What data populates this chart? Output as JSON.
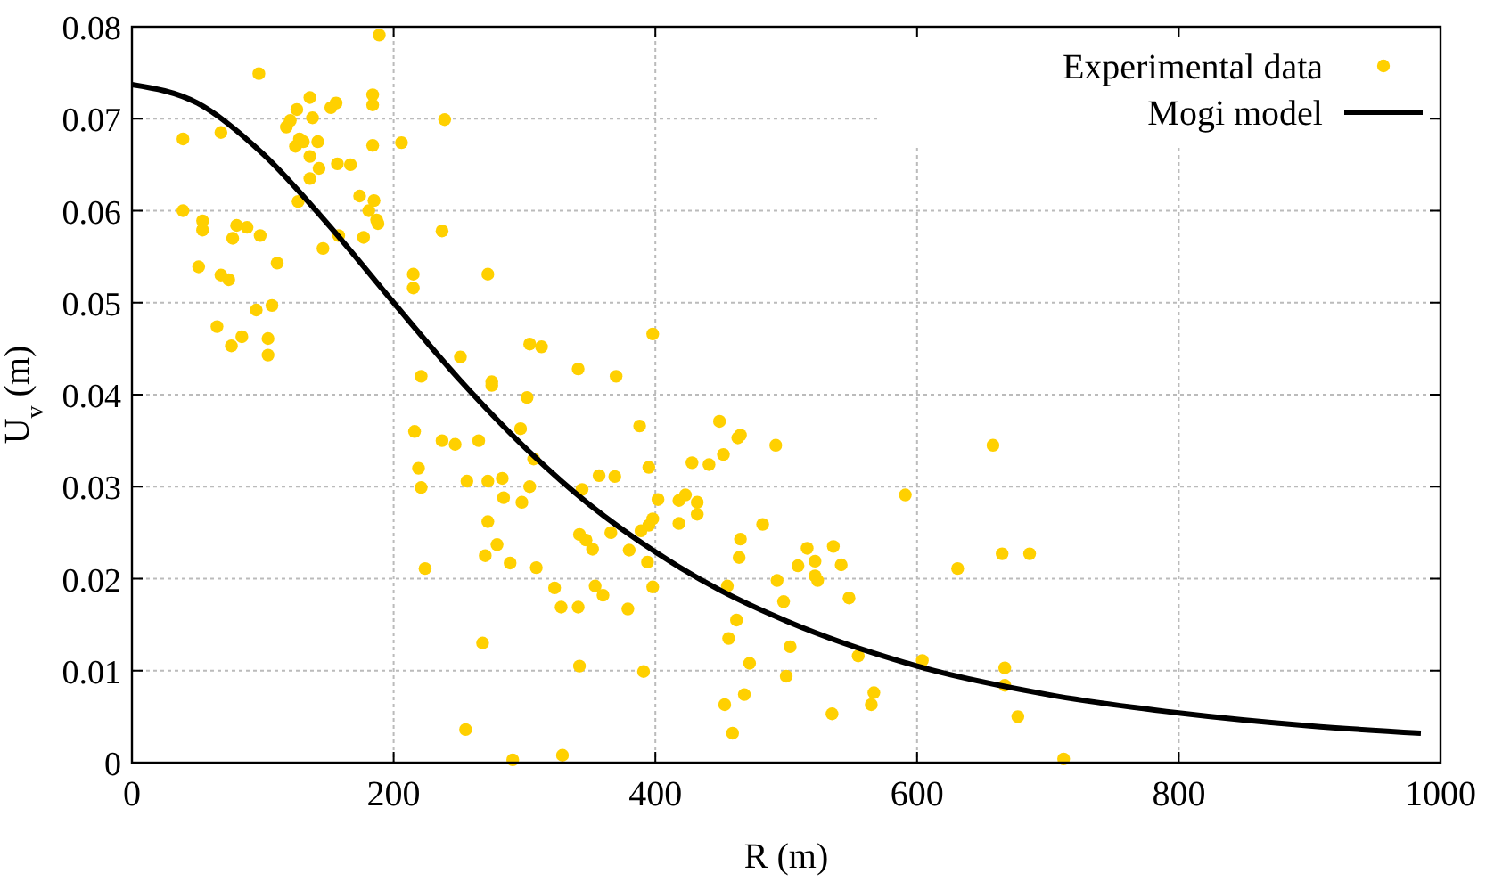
{
  "chart_data": {
    "type": "scatter",
    "xlabel": "R (m)",
    "ylabel": "U$_{v}$ (m)",
    "xlim": [
      0,
      1000
    ],
    "ylim": [
      0,
      0.08
    ],
    "xticks": [
      0,
      200,
      400,
      600,
      800,
      1000
    ],
    "yticks": [
      0,
      0.01,
      0.02,
      0.03,
      0.04,
      0.05,
      0.06,
      0.07,
      0.08
    ],
    "grid": true,
    "legend": "top right",
    "series": [
      {
        "name": "Experimental data",
        "marker": "circle",
        "color": "#ffd000",
        "x": [
          39,
          39,
          54,
          54,
          51,
          68,
          65,
          68,
          74,
          76,
          84,
          80,
          88,
          77,
          98,
          97,
          95,
          104,
          104,
          107,
          111,
          118,
          121,
          125,
          128,
          131,
          126,
          136,
          138,
          136,
          136,
          143,
          142,
          127,
          146,
          152,
          156,
          157,
          167,
          158,
          174,
          181,
          177,
          184,
          184,
          184,
          185,
          187,
          188,
          189,
          206,
          239,
          237,
          215,
          215,
          221,
          216,
          219,
          221,
          224,
          251,
          237,
          247,
          265,
          256,
          272,
          275,
          275,
          272,
          272,
          279,
          283,
          284,
          270,
          268,
          255,
          291,
          289,
          297,
          298,
          304,
          313,
          302,
          304,
          307,
          309,
          323,
          328,
          341,
          329,
          342,
          341,
          344,
          342,
          347,
          352,
          357,
          354,
          360,
          369,
          370,
          366,
          379,
          380,
          388,
          391,
          389,
          395,
          398,
          394,
          395,
          398,
          398,
          402,
          418,
          418,
          423,
          428,
          432,
          432,
          441,
          449,
          452,
          463,
          465,
          465,
          464,
          455,
          453,
          459,
          462,
          456,
          472,
          468,
          482,
          492,
          493,
          498,
          500,
          503,
          509,
          516,
          522,
          522,
          524,
          535,
          536,
          542,
          548,
          555,
          565,
          567,
          591,
          604,
          631,
          658,
          665,
          667,
          667,
          677,
          686,
          712
        ],
        "values": [
          0.0678,
          0.06,
          0.0589,
          0.0579,
          0.0539,
          0.0685,
          0.0474,
          0.053,
          0.0525,
          0.0453,
          0.0463,
          0.0584,
          0.0582,
          0.057,
          0.0573,
          0.0749,
          0.0492,
          0.0461,
          0.0443,
          0.0497,
          0.0543,
          0.0691,
          0.0698,
          0.067,
          0.0678,
          0.0675,
          0.071,
          0.0723,
          0.0701,
          0.0659,
          0.0635,
          0.0646,
          0.0675,
          0.061,
          0.0559,
          0.0712,
          0.0717,
          0.0651,
          0.065,
          0.0573,
          0.0616,
          0.06,
          0.0571,
          0.0715,
          0.0726,
          0.0671,
          0.0611,
          0.059,
          0.0586,
          0.0791,
          0.0674,
          0.0699,
          0.0578,
          0.0531,
          0.0516,
          0.042,
          0.036,
          0.032,
          0.0299,
          0.0211,
          0.0441,
          0.035,
          0.0346,
          0.035,
          0.0306,
          0.0531,
          0.0414,
          0.041,
          0.0306,
          0.0262,
          0.0237,
          0.0309,
          0.0288,
          0.0225,
          0.013,
          0.0036,
          0.0003,
          0.0217,
          0.0363,
          0.0283,
          0.0455,
          0.0452,
          0.0397,
          0.03,
          0.033,
          0.0212,
          0.019,
          0.0169,
          0.0169,
          0.0008,
          0.0105,
          0.0428,
          0.0297,
          0.0248,
          0.0242,
          0.0232,
          0.0312,
          0.0192,
          0.0182,
          0.0311,
          0.042,
          0.025,
          0.0167,
          0.0231,
          0.0366,
          0.0099,
          0.0252,
          0.0258,
          0.0265,
          0.0218,
          0.0321,
          0.0466,
          0.0191,
          0.0286,
          0.026,
          0.0285,
          0.0291,
          0.0326,
          0.0283,
          0.027,
          0.0324,
          0.0371,
          0.0335,
          0.0353,
          0.0356,
          0.0243,
          0.0223,
          0.0192,
          0.0063,
          0.0032,
          0.0155,
          0.0135,
          0.0108,
          0.0074,
          0.0259,
          0.0345,
          0.0198,
          0.0175,
          0.0094,
          0.0126,
          0.0214,
          0.0233,
          0.0219,
          0.0203,
          0.0198,
          0.0053,
          0.0235,
          0.0215,
          0.0179,
          0.0116,
          0.0063,
          0.0076,
          0.0291,
          0.0111,
          0.0211,
          0.0345,
          0.0227,
          0.0103,
          0.0084,
          0.005,
          0.0227,
          0.0004
        ]
      },
      {
        "name": "Mogi model",
        "type": "line",
        "marker": "none",
        "line_style": "solid",
        "color": "#000000",
        "x": [
          0,
          50,
          100,
          150,
          200,
          250,
          300,
          350,
          400,
          450,
          500,
          600,
          700,
          800,
          900,
          985
        ],
        "values": [
          0.0737,
          0.0717,
          0.0662,
          0.0585,
          0.05,
          0.0417,
          0.0343,
          0.028,
          0.0229,
          0.0187,
          0.0154,
          0.0105,
          0.0074,
          0.0054,
          0.004,
          0.0032
        ]
      }
    ]
  }
}
